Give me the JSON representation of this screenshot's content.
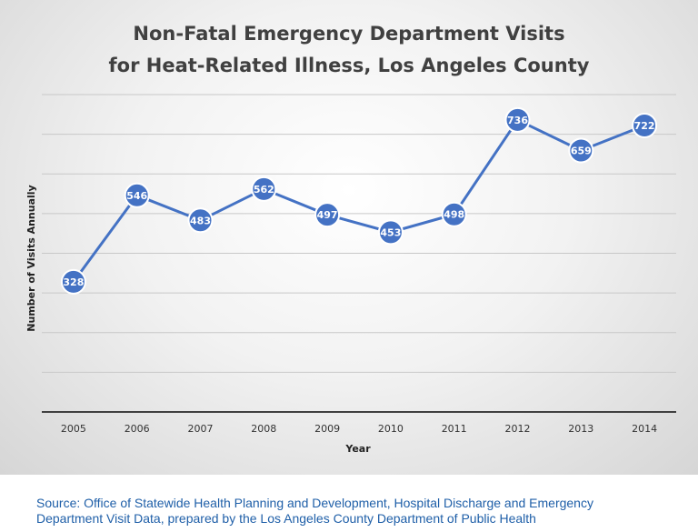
{
  "chart_data": {
    "type": "line",
    "title": [
      "Non-Fatal Emergency Department Visits",
      "for Heat-Related Illness, Los Angeles County"
    ],
    "xlabel": "Year",
    "ylabel": "Number of Visits Annually",
    "categories": [
      "2005",
      "2006",
      "2007",
      "2008",
      "2009",
      "2010",
      "2011",
      "2012",
      "2013",
      "2014"
    ],
    "series": [
      {
        "values": [
          328,
          546,
          483,
          562,
          497,
          453,
          498,
          736,
          659,
          722
        ],
        "data_labels": [
          "328",
          "546",
          "483",
          "562",
          "497",
          "453",
          "498",
          "736",
          "659",
          "722"
        ]
      }
    ],
    "ylim": [
      0,
      800
    ],
    "y_gridline_step": 100,
    "y_tick_labels_visible": false,
    "grid": true,
    "legend": "none",
    "line_color": "#4472c4"
  },
  "source": {
    "line1": "Source: Office of Statewide Health Planning and Development, Hospital Discharge and Emergency",
    "line2": "Department Visit Data, prepared by the Los Angeles County Department of Public Health"
  }
}
